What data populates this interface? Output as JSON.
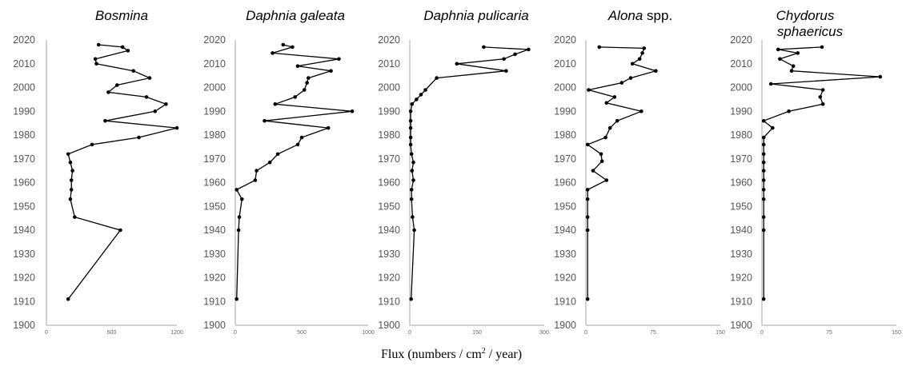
{
  "chart_data": [
    {
      "type": "line",
      "title": "Bosmina",
      "title_plain": "",
      "xlim": [
        0,
        1200
      ],
      "x_ticks": [
        "0",
        "600",
        "1200"
      ],
      "ylim": [
        1900,
        2020
      ],
      "y_ticks": [
        "1900",
        "1910",
        "1920",
        "1930",
        "1940",
        "1950",
        "1960",
        "1970",
        "1980",
        "1990",
        "2000",
        "2010",
        "2020"
      ],
      "points": [
        {
          "x": 480,
          "y": 2018
        },
        {
          "x": 700,
          "y": 2017
        },
        {
          "x": 750,
          "y": 2015.5
        },
        {
          "x": 450,
          "y": 2012
        },
        {
          "x": 460,
          "y": 2010
        },
        {
          "x": 800,
          "y": 2007
        },
        {
          "x": 950,
          "y": 2004
        },
        {
          "x": 650,
          "y": 2001
        },
        {
          "x": 570,
          "y": 1998
        },
        {
          "x": 920,
          "y": 1996
        },
        {
          "x": 1100,
          "y": 1993
        },
        {
          "x": 1000,
          "y": 1990
        },
        {
          "x": 540,
          "y": 1986
        },
        {
          "x": 1200,
          "y": 1983
        },
        {
          "x": 850,
          "y": 1979
        },
        {
          "x": 420,
          "y": 1976
        },
        {
          "x": 200,
          "y": 1972
        },
        {
          "x": 220,
          "y": 1968.5
        },
        {
          "x": 240,
          "y": 1965
        },
        {
          "x": 230,
          "y": 1961
        },
        {
          "x": 230,
          "y": 1957
        },
        {
          "x": 220,
          "y": 1953
        },
        {
          "x": 260,
          "y": 1945.5
        },
        {
          "x": 680,
          "y": 1940
        },
        {
          "x": 200,
          "y": 1911
        }
      ]
    },
    {
      "type": "line",
      "title": "Daphnia galeata",
      "title_plain": "",
      "xlim": [
        0,
        1000
      ],
      "x_ticks": [
        "0",
        "500",
        "1000"
      ],
      "ylim": [
        1900,
        2020
      ],
      "y_ticks": [
        "1900",
        "1910",
        "1920",
        "1930",
        "1940",
        "1950",
        "1960",
        "1970",
        "1980",
        "1990",
        "2000",
        "2010",
        "2020"
      ],
      "points": [
        {
          "x": 360,
          "y": 2018
        },
        {
          "x": 430,
          "y": 2017
        },
        {
          "x": 280,
          "y": 2014.5
        },
        {
          "x": 780,
          "y": 2012
        },
        {
          "x": 470,
          "y": 2009
        },
        {
          "x": 720,
          "y": 2007
        },
        {
          "x": 550,
          "y": 2004
        },
        {
          "x": 540,
          "y": 2002
        },
        {
          "x": 520,
          "y": 1999
        },
        {
          "x": 450,
          "y": 1996
        },
        {
          "x": 300,
          "y": 1993
        },
        {
          "x": 880,
          "y": 1990
        },
        {
          "x": 220,
          "y": 1986
        },
        {
          "x": 700,
          "y": 1983
        },
        {
          "x": 500,
          "y": 1979
        },
        {
          "x": 470,
          "y": 1976
        },
        {
          "x": 320,
          "y": 1972
        },
        {
          "x": 260,
          "y": 1968.5
        },
        {
          "x": 160,
          "y": 1965
        },
        {
          "x": 150,
          "y": 1961
        },
        {
          "x": 10,
          "y": 1957
        },
        {
          "x": 50,
          "y": 1953
        },
        {
          "x": 30,
          "y": 1945.5
        },
        {
          "x": 25,
          "y": 1940
        },
        {
          "x": 10,
          "y": 1911
        }
      ]
    },
    {
      "type": "line",
      "title": "Daphnia pulicaria",
      "title_plain": "",
      "xlim": [
        0,
        300
      ],
      "x_ticks": [
        "0",
        "150",
        "300"
      ],
      "ylim": [
        1900,
        2020
      ],
      "y_ticks": [
        "1900",
        "1910",
        "1920",
        "1930",
        "1940",
        "1950",
        "1960",
        "1970",
        "1980",
        "1990",
        "2000",
        "2010",
        "2020"
      ],
      "points": [
        {
          "x": 165,
          "y": 2017
        },
        {
          "x": 265,
          "y": 2016
        },
        {
          "x": 235,
          "y": 2014
        },
        {
          "x": 210,
          "y": 2012
        },
        {
          "x": 105,
          "y": 2010
        },
        {
          "x": 215,
          "y": 2007
        },
        {
          "x": 60,
          "y": 2004
        },
        {
          "x": 35,
          "y": 1999
        },
        {
          "x": 25,
          "y": 1997
        },
        {
          "x": 15,
          "y": 1995
        },
        {
          "x": 5,
          "y": 1993
        },
        {
          "x": 2,
          "y": 1990
        },
        {
          "x": 2,
          "y": 1986
        },
        {
          "x": 2,
          "y": 1983
        },
        {
          "x": 2,
          "y": 1979
        },
        {
          "x": 2,
          "y": 1976
        },
        {
          "x": 4,
          "y": 1972
        },
        {
          "x": 8,
          "y": 1968.5
        },
        {
          "x": 5,
          "y": 1965
        },
        {
          "x": 8,
          "y": 1961
        },
        {
          "x": 4,
          "y": 1957
        },
        {
          "x": 4,
          "y": 1953
        },
        {
          "x": 6,
          "y": 1945.5
        },
        {
          "x": 10,
          "y": 1940
        },
        {
          "x": 3,
          "y": 1911
        }
      ]
    },
    {
      "type": "line",
      "title": "Alona",
      "title_plain": " spp.",
      "xlim": [
        0,
        150
      ],
      "x_ticks": [
        "0",
        "75",
        "150"
      ],
      "ylim": [
        1900,
        2020
      ],
      "y_ticks": [
        "1900",
        "1910",
        "1920",
        "1930",
        "1940",
        "1950",
        "1960",
        "1970",
        "1980",
        "1990",
        "2000",
        "2010",
        "2020"
      ],
      "points": [
        {
          "x": 15,
          "y": 2017
        },
        {
          "x": 65,
          "y": 2016.5
        },
        {
          "x": 63,
          "y": 2014.5
        },
        {
          "x": 60,
          "y": 2012
        },
        {
          "x": 52,
          "y": 2010
        },
        {
          "x": 78,
          "y": 2007
        },
        {
          "x": 50,
          "y": 2004
        },
        {
          "x": 40,
          "y": 2002
        },
        {
          "x": 3,
          "y": 1999
        },
        {
          "x": 32,
          "y": 1996
        },
        {
          "x": 23,
          "y": 1993.5
        },
        {
          "x": 62,
          "y": 1990
        },
        {
          "x": 35,
          "y": 1986
        },
        {
          "x": 27,
          "y": 1983
        },
        {
          "x": 22,
          "y": 1979
        },
        {
          "x": 2,
          "y": 1976
        },
        {
          "x": 17,
          "y": 1972
        },
        {
          "x": 18,
          "y": 1969
        },
        {
          "x": 8,
          "y": 1965
        },
        {
          "x": 23,
          "y": 1961
        },
        {
          "x": 2,
          "y": 1957
        },
        {
          "x": 2,
          "y": 1953
        },
        {
          "x": 2,
          "y": 1945.5
        },
        {
          "x": 2,
          "y": 1940
        },
        {
          "x": 2,
          "y": 1911
        }
      ]
    },
    {
      "type": "line",
      "title": "Chydorus",
      "title_line2": "sphaericus",
      "title_plain": "",
      "xlim": [
        0,
        150
      ],
      "x_ticks": [
        "0",
        "75",
        "150"
      ],
      "ylim": [
        1900,
        2020
      ],
      "y_ticks": [
        "1900",
        "1910",
        "1920",
        "1930",
        "1940",
        "1950",
        "1960",
        "1970",
        "1980",
        "1990",
        "2000",
        "2010",
        "2020"
      ],
      "points": [
        {
          "x": 67,
          "y": 2017
        },
        {
          "x": 18,
          "y": 2016
        },
        {
          "x": 40,
          "y": 2014.5
        },
        {
          "x": 20,
          "y": 2012
        },
        {
          "x": 35,
          "y": 2009
        },
        {
          "x": 33,
          "y": 2007
        },
        {
          "x": 132,
          "y": 2004.5
        },
        {
          "x": 10,
          "y": 2001.5
        },
        {
          "x": 68,
          "y": 1999
        },
        {
          "x": 65,
          "y": 1996
        },
        {
          "x": 68,
          "y": 1993
        },
        {
          "x": 30,
          "y": 1990
        },
        {
          "x": 2,
          "y": 1986
        },
        {
          "x": 12,
          "y": 1983
        },
        {
          "x": 2,
          "y": 1979
        },
        {
          "x": 2,
          "y": 1976
        },
        {
          "x": 2,
          "y": 1972
        },
        {
          "x": 2,
          "y": 1968.5
        },
        {
          "x": 2,
          "y": 1965
        },
        {
          "x": 2,
          "y": 1961
        },
        {
          "x": 2,
          "y": 1957
        },
        {
          "x": 2,
          "y": 1953
        },
        {
          "x": 2,
          "y": 1945.5
        },
        {
          "x": 2,
          "y": 1940
        },
        {
          "x": 2,
          "y": 1911
        }
      ]
    }
  ],
  "xlabel_main": "Flux (numbers / cm",
  "xlabel_sup": "2",
  "xlabel_tail": " / year)"
}
